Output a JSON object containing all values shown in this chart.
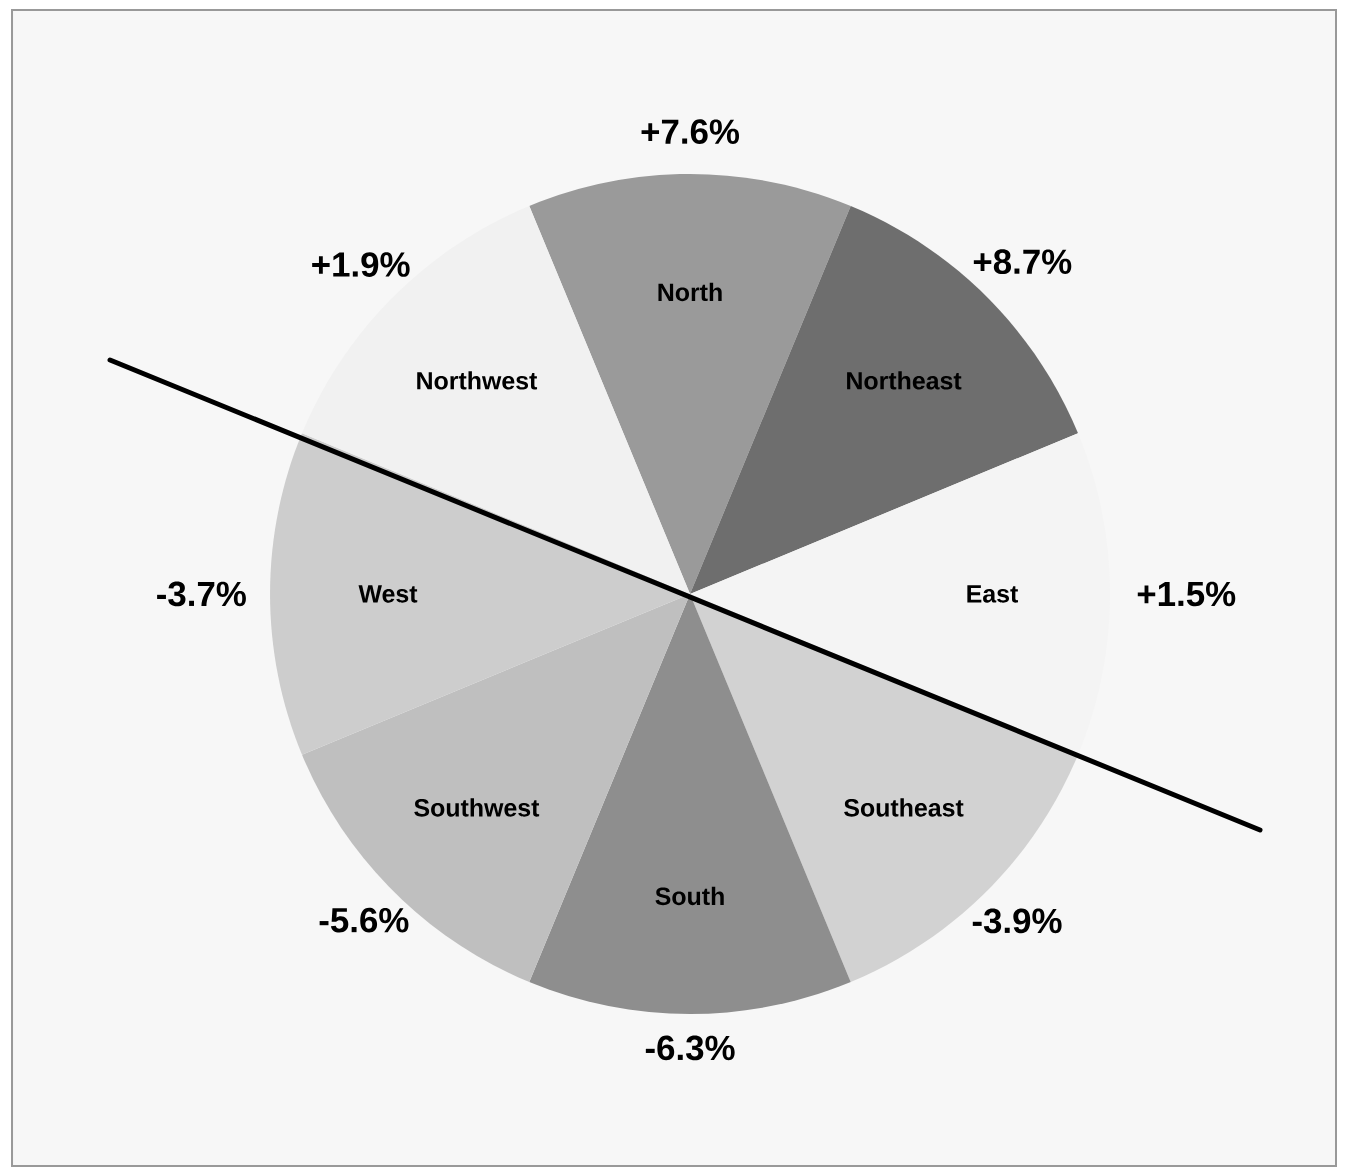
{
  "chart_data": {
    "type": "other",
    "categories": [
      "North",
      "Northeast",
      "East",
      "Southeast",
      "South",
      "Southwest",
      "West",
      "Northwest"
    ],
    "values": [
      7.6,
      8.7,
      1.5,
      -3.9,
      -6.3,
      -5.6,
      -3.7,
      1.9
    ],
    "value_labels": [
      "+7.6%",
      "+8.7%",
      "+1.5%",
      "-3.9%",
      "-6.3%",
      "-5.6%",
      "-3.7%",
      "+1.9%"
    ],
    "colors": [
      "#9a9a9a",
      "#6e6e6e",
      "#f4f4f4",
      "#d2d2d2",
      "#8e8e8e",
      "#bfbfbf",
      "#cdcdcd",
      "#f1f1f1"
    ]
  }
}
